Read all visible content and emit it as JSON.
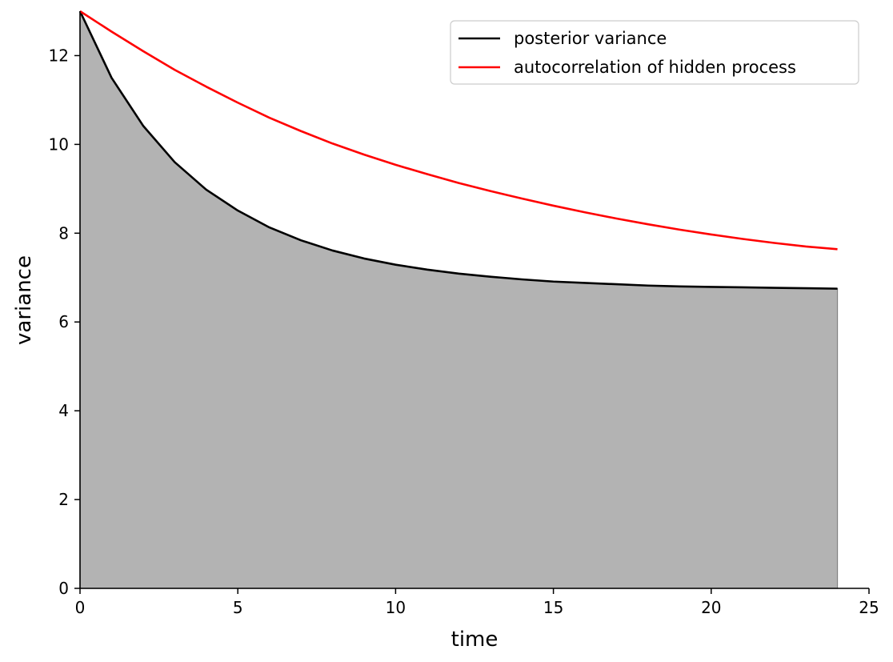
{
  "chart_data": {
    "type": "line",
    "xlabel": "time",
    "ylabel": "variance",
    "xlim": [
      0,
      25
    ],
    "ylim": [
      0,
      13
    ],
    "x_ticks": [
      0,
      5,
      10,
      15,
      20,
      25
    ],
    "y_ticks": [
      0,
      2,
      4,
      6,
      8,
      10,
      12
    ],
    "x_tick_labels": [
      "0",
      "5",
      "10",
      "15",
      "20",
      "25"
    ],
    "y_tick_labels": [
      "0",
      "2",
      "4",
      "6",
      "8",
      "10",
      "12"
    ],
    "legend_position": "top-right",
    "grid": false,
    "x": [
      0,
      1,
      2,
      3,
      4,
      5,
      6,
      7,
      8,
      9,
      10,
      11,
      12,
      13,
      14,
      15,
      16,
      17,
      18,
      19,
      20,
      21,
      22,
      23,
      24
    ],
    "series": [
      {
        "name": "posterior variance",
        "color": "#000000",
        "fill": "#b3b3b3",
        "values": [
          13.0,
          11.5,
          10.42,
          9.6,
          8.98,
          8.51,
          8.13,
          7.84,
          7.61,
          7.43,
          7.29,
          7.18,
          7.09,
          7.02,
          6.96,
          6.91,
          6.88,
          6.85,
          6.82,
          6.8,
          6.79,
          6.78,
          6.77,
          6.76,
          6.75
        ]
      },
      {
        "name": "autocorrelation of hidden process",
        "color": "#ff0000",
        "values": [
          13.0,
          12.54,
          12.1,
          11.68,
          11.3,
          10.94,
          10.6,
          10.3,
          10.02,
          9.77,
          9.54,
          9.33,
          9.13,
          8.95,
          8.78,
          8.62,
          8.47,
          8.33,
          8.2,
          8.08,
          7.97,
          7.87,
          7.78,
          7.7,
          7.64
        ]
      }
    ]
  }
}
